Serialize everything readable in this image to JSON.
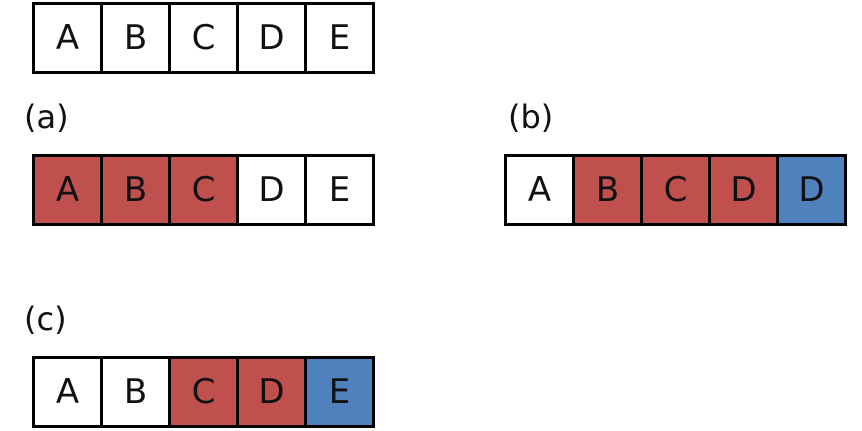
{
  "colors": {
    "white": "#ffffff",
    "red": "#c0504d",
    "blue": "#4f81bd",
    "border": "#000000"
  },
  "original": {
    "cells": [
      {
        "letter": "A",
        "fill": "white"
      },
      {
        "letter": "B",
        "fill": "white"
      },
      {
        "letter": "C",
        "fill": "white"
      },
      {
        "letter": "D",
        "fill": "white"
      },
      {
        "letter": "E",
        "fill": "white"
      }
    ]
  },
  "panel_a": {
    "label": "(a)",
    "cells": [
      {
        "letter": "A",
        "fill": "red"
      },
      {
        "letter": "B",
        "fill": "red"
      },
      {
        "letter": "C",
        "fill": "red"
      },
      {
        "letter": "D",
        "fill": "white"
      },
      {
        "letter": "E",
        "fill": "white"
      }
    ]
  },
  "panel_b": {
    "label": "(b)",
    "cells": [
      {
        "letter": "A",
        "fill": "white"
      },
      {
        "letter": "B",
        "fill": "red"
      },
      {
        "letter": "C",
        "fill": "red"
      },
      {
        "letter": "D",
        "fill": "red"
      },
      {
        "letter": "D",
        "fill": "blue"
      }
    ]
  },
  "panel_c": {
    "label": "(c)",
    "cells": [
      {
        "letter": "A",
        "fill": "white"
      },
      {
        "letter": "B",
        "fill": "white"
      },
      {
        "letter": "C",
        "fill": "red"
      },
      {
        "letter": "D",
        "fill": "red"
      },
      {
        "letter": "E",
        "fill": "blue"
      }
    ]
  }
}
